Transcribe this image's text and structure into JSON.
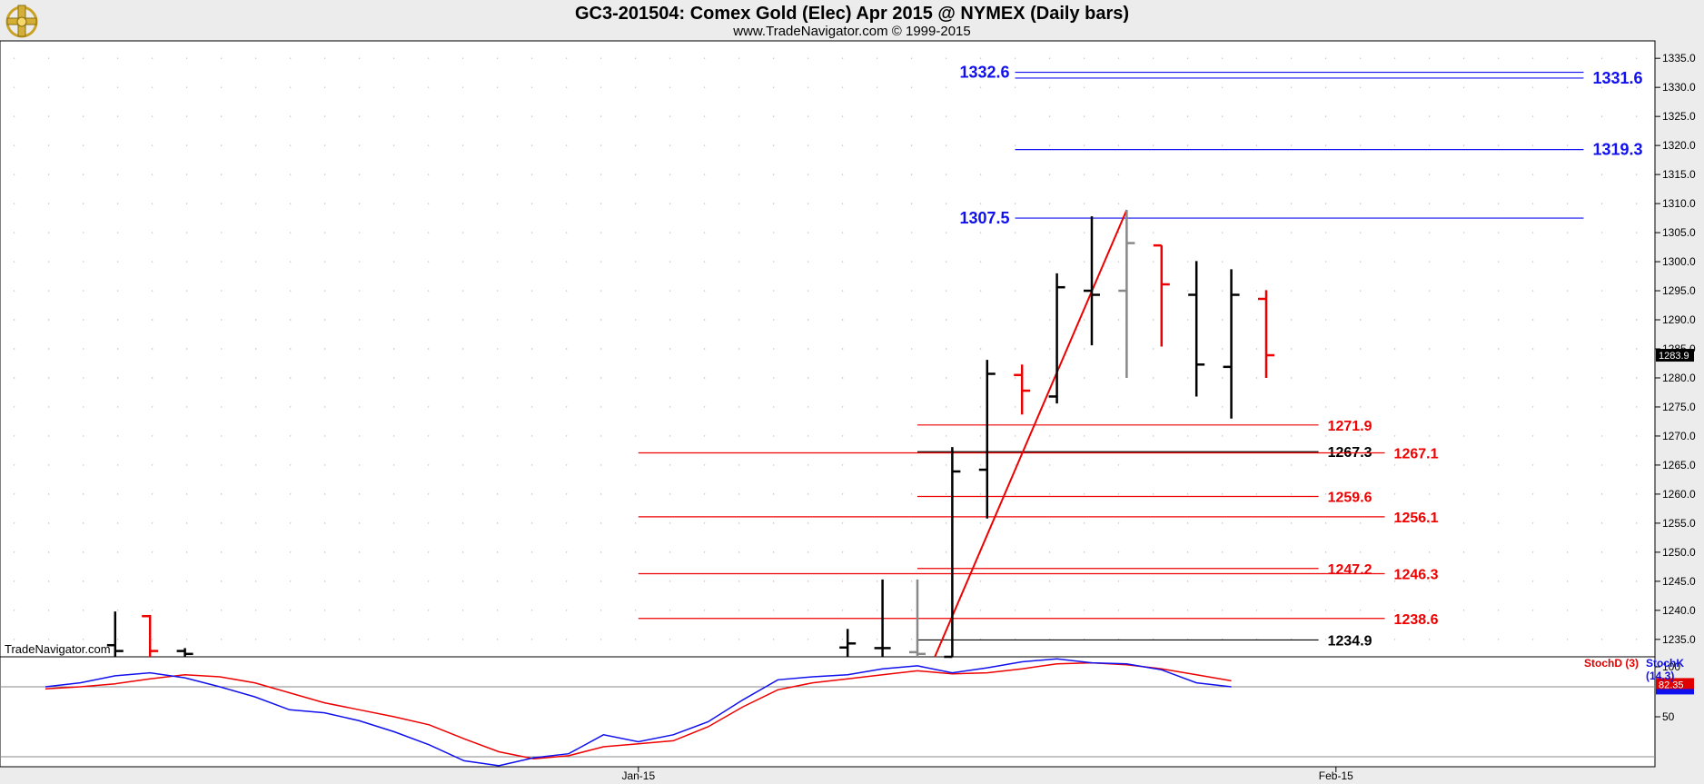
{
  "header": {
    "title": "GC3-201504:  Comex Gold (Elec) Apr 2015 @ NYMEX  (Daily bars)",
    "subtitle": "www.TradeNavigator.com © 1999-2015",
    "watermark": "TradeNavigator.com"
  },
  "colors": {
    "up": "#000000",
    "down": "#ee0000",
    "neutral": "#888888",
    "blue": "#1010ee",
    "red": "#ee0000"
  },
  "chart_data": {
    "type": "bar",
    "title": "GC3-201504:  Comex Gold (Elec) Apr 2015 @ NYMEX  (Daily bars)",
    "ylim": [
      1232,
      1338
    ],
    "y_ticks": [
      "1235.0",
      "1240.0",
      "1245.0",
      "1250.0",
      "1255.0",
      "1260.0",
      "1265.0",
      "1270.0",
      "1275.0",
      "1280.0",
      "1285.0",
      "1290.0",
      "1295.0",
      "1300.0",
      "1305.0",
      "1310.0",
      "1315.0",
      "1320.0",
      "1325.0",
      "1330.0",
      "1335.0"
    ],
    "x_labels": [
      {
        "label": "Jan-15",
        "idx": 17
      },
      {
        "label": "Feb-15",
        "idx": 37
      }
    ],
    "last_price": "1283.9",
    "bars": [
      {
        "idx": 2,
        "open": 1234.0,
        "high": 1239.8,
        "low": 1232,
        "close": 1233.0,
        "color": "up"
      },
      {
        "idx": 3,
        "open": 1239.0,
        "high": 1239.2,
        "low": 1232,
        "close": 1233.0,
        "color": "down"
      },
      {
        "idx": 4,
        "open": 1233.0,
        "high": 1233.5,
        "low": 1232,
        "close": 1232.5,
        "color": "up"
      },
      {
        "idx": 23,
        "open": 1233.6,
        "high": 1236.8,
        "low": 1232,
        "close": 1234.3,
        "color": "up"
      },
      {
        "idx": 24,
        "open": 1233.5,
        "high": 1245.3,
        "low": 1232,
        "close": 1233.5,
        "color": "up"
      },
      {
        "idx": 25,
        "open": 1232.8,
        "high": 1245.3,
        "low": 1232,
        "close": 1232.5,
        "color": "neutral"
      },
      {
        "idx": 26,
        "open": 1232.0,
        "high": 1268.1,
        "low": 1232,
        "close": 1263.9,
        "color": "up"
      },
      {
        "idx": 27,
        "open": 1264.2,
        "high": 1283.1,
        "low": 1255.8,
        "close": 1280.7,
        "color": "up"
      },
      {
        "idx": 28,
        "open": 1280.5,
        "high": 1282.3,
        "low": 1273.7,
        "close": 1277.8,
        "color": "down"
      },
      {
        "idx": 29,
        "open": 1276.8,
        "high": 1298.0,
        "low": 1275.6,
        "close": 1295.6,
        "color": "up"
      },
      {
        "idx": 30,
        "open": 1295.0,
        "high": 1307.8,
        "low": 1285.6,
        "close": 1294.3,
        "color": "up"
      },
      {
        "idx": 31,
        "open": 1295.0,
        "high": 1308.9,
        "low": 1280.0,
        "close": 1303.2,
        "color": "neutral"
      },
      {
        "idx": 32,
        "open": 1302.8,
        "high": 1302.8,
        "low": 1285.4,
        "close": 1296.1,
        "color": "down"
      },
      {
        "idx": 33,
        "open": 1294.3,
        "high": 1300.1,
        "low": 1276.8,
        "close": 1282.3,
        "color": "up"
      },
      {
        "idx": 34,
        "open": 1281.9,
        "high": 1298.7,
        "low": 1273.0,
        "close": 1294.3,
        "color": "up"
      },
      {
        "idx": 35,
        "open": 1293.6,
        "high": 1295.1,
        "low": 1280.0,
        "close": 1283.9,
        "color": "down"
      }
    ],
    "levels": [
      {
        "value": 1332.6,
        "label": "1332.6",
        "color": "blue",
        "x_from": 27.8,
        "x_to": 44.1,
        "label_side": "left"
      },
      {
        "value": 1331.6,
        "label": "1331.6",
        "color": "blue",
        "x_from": 27.8,
        "x_to": 44.1,
        "label_side": "right"
      },
      {
        "value": 1319.3,
        "label": "1319.3",
        "color": "blue",
        "x_from": 27.8,
        "x_to": 44.1,
        "label_side": "right"
      },
      {
        "value": 1307.5,
        "label": "1307.5",
        "color": "blue",
        "x_from": 27.8,
        "x_to": 44.1,
        "label_side": "left"
      },
      {
        "value": 1271.9,
        "label": "1271.9",
        "color": "red",
        "x_from": 25,
        "x_to": 36.5,
        "label_side": "right"
      },
      {
        "value": 1267.3,
        "label": "1267.3",
        "color": "black",
        "x_from": 25,
        "x_to": 36.5,
        "label_side": "right"
      },
      {
        "value": 1267.1,
        "label": "1267.1",
        "color": "red",
        "x_from": 17,
        "x_to": 38.4,
        "label_side": "right"
      },
      {
        "value": 1259.6,
        "label": "1259.6",
        "color": "red",
        "x_from": 25,
        "x_to": 36.5,
        "label_side": "right"
      },
      {
        "value": 1256.1,
        "label": "1256.1",
        "color": "red",
        "x_from": 17,
        "x_to": 38.4,
        "label_side": "right"
      },
      {
        "value": 1247.2,
        "label": "1247.2",
        "color": "red",
        "x_from": 25,
        "x_to": 36.5,
        "label_side": "right"
      },
      {
        "value": 1246.3,
        "label": "1246.3",
        "color": "red",
        "x_from": 17,
        "x_to": 38.4,
        "label_side": "right"
      },
      {
        "value": 1238.6,
        "label": "1238.6",
        "color": "red",
        "x_from": 17,
        "x_to": 38.4,
        "label_side": "right"
      },
      {
        "value": 1234.9,
        "label": "1234.9",
        "color": "black",
        "x_from": 25,
        "x_to": 36.5,
        "label_side": "right"
      }
    ],
    "trendline": [
      {
        "x": 25.5,
        "y": 1232
      },
      {
        "x": 31.0,
        "y": 1308.9
      }
    ],
    "stochastic": {
      "ylim": [
        0,
        110
      ],
      "y_ticks": [
        "100",
        "50"
      ],
      "ref_line": 80,
      "values_label": {
        "d": "82.35"
      },
      "series": [
        {
          "name": "StochD (3)",
          "color": "red",
          "points": [
            [
              0,
              78
            ],
            [
              1,
              80
            ],
            [
              2,
              83
            ],
            [
              3,
              88
            ],
            [
              4,
              92
            ],
            [
              5,
              90
            ],
            [
              6,
              84
            ],
            [
              7,
              74
            ],
            [
              8,
              64
            ],
            [
              9,
              57
            ],
            [
              10,
              50
            ],
            [
              11,
              42
            ],
            [
              12,
              28
            ],
            [
              13,
              15
            ],
            [
              14,
              8
            ],
            [
              15,
              11
            ],
            [
              16,
              20
            ],
            [
              17,
              23
            ],
            [
              18,
              26
            ],
            [
              19,
              40
            ],
            [
              20,
              60
            ],
            [
              21,
              77
            ],
            [
              22,
              84
            ],
            [
              23,
              88
            ],
            [
              24,
              92
            ],
            [
              25,
              96
            ],
            [
              26,
              93
            ],
            [
              27,
              94
            ],
            [
              28,
              98
            ],
            [
              29,
              103
            ],
            [
              30,
              104
            ],
            [
              31,
              102
            ],
            [
              32,
              98
            ],
            [
              33,
              92
            ],
            [
              34,
              86
            ]
          ]
        },
        {
          "name": "StochK (14,3)",
          "color": "blue",
          "points": [
            [
              0,
              80
            ],
            [
              1,
              84
            ],
            [
              2,
              91
            ],
            [
              3,
              94
            ],
            [
              4,
              89
            ],
            [
              5,
              80
            ],
            [
              6,
              70
            ],
            [
              7,
              57
            ],
            [
              8,
              54
            ],
            [
              9,
              46
            ],
            [
              10,
              35
            ],
            [
              11,
              22
            ],
            [
              12,
              6
            ],
            [
              13,
              1
            ],
            [
              14,
              9
            ],
            [
              15,
              13
            ],
            [
              16,
              32
            ],
            [
              17,
              25
            ],
            [
              18,
              32
            ],
            [
              19,
              45
            ],
            [
              20,
              67
            ],
            [
              21,
              87
            ],
            [
              22,
              90
            ],
            [
              23,
              92
            ],
            [
              24,
              98
            ],
            [
              25,
              101
            ],
            [
              26,
              94
            ],
            [
              27,
              99
            ],
            [
              28,
              105
            ],
            [
              29,
              108
            ],
            [
              30,
              104
            ],
            [
              31,
              103
            ],
            [
              32,
              97
            ],
            [
              33,
              84
            ],
            [
              34,
              80
            ]
          ]
        }
      ]
    }
  }
}
